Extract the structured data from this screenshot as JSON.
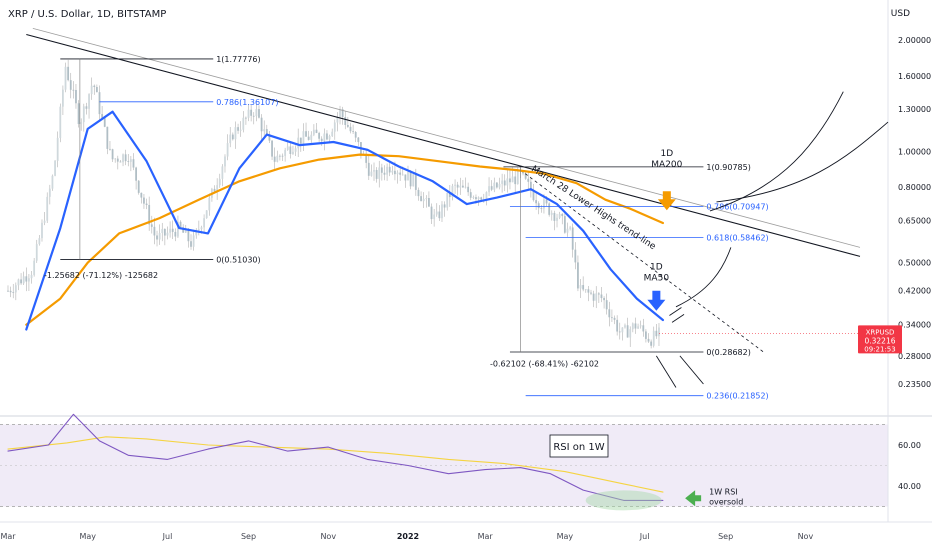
{
  "header": {
    "title": "XRP / U.S. Dollar, 1D, BITSTAMP",
    "currency": "USD"
  },
  "price_badge": {
    "symbol": "XRPUSD",
    "value": "0.32216",
    "countdown": "09:21:53",
    "color": "#f23645"
  },
  "colors": {
    "ma50": "#2962ff",
    "ma200": "#f59b00",
    "fib": "#2962ff",
    "rsi": "#7e57c2",
    "rsi_ma": "#f5d442",
    "oversold_highlight": "#a5d6a7",
    "arrow_ma200": "#f59b00",
    "arrow_ma50": "#2962ff",
    "arrow_rsi": "#4caf50"
  },
  "chart_data": [
    {
      "type": "line",
      "title": "XRP / U.S. Dollar, 1D, BITSTAMP",
      "scale": "log",
      "y_axis_ticks": [
        "2.00000",
        "1.60000",
        "1.30000",
        "1.00000",
        "0.80000",
        "0.65000",
        "0.50000",
        "0.42000",
        "0.34000",
        "0.28000",
        "0.23500"
      ],
      "x_axis_ticks": [
        "Mar",
        "May",
        "Jul",
        "Sep",
        "Nov",
        "2022",
        "Mar",
        "May",
        "Jul",
        "Sep",
        "Nov"
      ],
      "series": [
        {
          "name": "MA50",
          "x": [
            "2021-03-15",
            "2021-04-10",
            "2021-05-01",
            "2021-05-20",
            "2021-06-15",
            "2021-07-10",
            "2021-08-01",
            "2021-08-25",
            "2021-09-15",
            "2021-10-10",
            "2021-11-05",
            "2021-12-01",
            "2021-12-25",
            "2022-01-20",
            "2022-02-15",
            "2022-03-10",
            "2022-04-05",
            "2022-04-25",
            "2022-05-15",
            "2022-06-05",
            "2022-06-25",
            "2022-07-15"
          ],
          "values": [
            0.33,
            0.62,
            1.15,
            1.28,
            0.94,
            0.62,
            0.6,
            0.9,
            1.11,
            1.04,
            1.06,
            1.01,
            0.91,
            0.83,
            0.72,
            0.75,
            0.79,
            0.72,
            0.61,
            0.48,
            0.4,
            0.35
          ]
        },
        {
          "name": "MA200",
          "x": [
            "2021-03-15",
            "2021-04-10",
            "2021-05-01",
            "2021-05-25",
            "2021-06-25",
            "2021-07-25",
            "2021-08-25",
            "2021-09-25",
            "2021-10-25",
            "2021-11-25",
            "2021-12-25",
            "2022-01-25",
            "2022-02-25",
            "2022-03-25",
            "2022-04-15",
            "2022-05-10",
            "2022-06-01",
            "2022-06-20",
            "2022-07-15"
          ],
          "values": [
            0.34,
            0.4,
            0.5,
            0.6,
            0.66,
            0.74,
            0.83,
            0.9,
            0.95,
            0.98,
            0.97,
            0.94,
            0.91,
            0.89,
            0.87,
            0.82,
            0.74,
            0.7,
            0.64
          ]
        },
        {
          "name": "Price",
          "x": [
            "2021-03-01",
            "2021-03-20",
            "2021-04-05",
            "2021-04-14",
            "2021-04-25",
            "2021-05-05",
            "2021-05-19",
            "2021-06-01",
            "2021-06-22",
            "2021-07-10",
            "2021-07-20",
            "2021-08-05",
            "2021-08-20",
            "2021-09-06",
            "2021-09-21",
            "2021-10-10",
            "2021-11-01",
            "2021-11-10",
            "2021-11-25",
            "2021-12-05",
            "2021-12-20",
            "2022-01-05",
            "2022-01-22",
            "2022-02-05",
            "2022-02-25",
            "2022-03-10",
            "2022-03-28",
            "2022-04-10",
            "2022-04-25",
            "2022-05-05",
            "2022-05-12",
            "2022-05-30",
            "2022-06-13",
            "2022-06-25",
            "2022-07-05",
            "2022-07-12"
          ],
          "values": [
            0.42,
            0.48,
            0.88,
            1.7,
            1.2,
            1.55,
            0.95,
            0.98,
            0.58,
            0.62,
            0.56,
            0.78,
            1.12,
            1.3,
            0.95,
            1.08,
            1.12,
            1.28,
            1.02,
            0.85,
            0.92,
            0.83,
            0.65,
            0.8,
            0.76,
            0.8,
            0.86,
            0.74,
            0.67,
            0.6,
            0.42,
            0.4,
            0.32,
            0.34,
            0.31,
            0.32
          ]
        }
      ],
      "fib_levels": [
        {
          "label": "1(1.77776)",
          "price": 1.77776
        },
        {
          "label": "0.786(1.36107)",
          "price": 1.36107
        },
        {
          "label": "0(0.51030)",
          "price": 0.5103
        },
        {
          "label": "1(0.90785)",
          "price": 0.90785
        },
        {
          "label": "0.786(0.70947)",
          "price": 0.70947
        },
        {
          "label": "0.618(0.58462)",
          "price": 0.58462
        },
        {
          "label": "0(0.28682)",
          "price": 0.28682
        },
        {
          "label": "0.236(0.21852)",
          "price": 0.21852
        }
      ],
      "annotations": [
        "-1.25682 (-71.12%) -125682",
        "-0.62102 (-68.41%) -62102",
        "March 28 Lower Highs trend-line",
        "1D MA200",
        "1D MA50"
      ]
    },
    {
      "type": "line",
      "title": "RSI on 1W",
      "y_axis_ticks": [
        "60.00",
        "40.00"
      ],
      "series": [
        {
          "name": "RSI",
          "x": [
            "2021-03-01",
            "2021-04-01",
            "2021-04-20",
            "2021-05-10",
            "2021-06-01",
            "2021-07-01",
            "2021-08-01",
            "2021-09-01",
            "2021-10-01",
            "2021-11-01",
            "2021-12-01",
            "2022-01-01",
            "2022-02-01",
            "2022-03-01",
            "2022-03-28",
            "2022-04-20",
            "2022-05-15",
            "2022-06-15",
            "2022-07-15"
          ],
          "values": [
            57,
            60,
            75,
            62,
            55,
            53,
            58,
            62,
            57,
            59,
            53,
            50,
            46,
            48,
            49,
            46,
            38,
            33,
            33
          ]
        },
        {
          "name": "RSI MA",
          "x": [
            "2021-03-01",
            "2021-04-15",
            "2021-05-15",
            "2021-06-15",
            "2021-08-01",
            "2021-09-15",
            "2021-11-01",
            "2021-12-15",
            "2022-02-01",
            "2022-03-15",
            "2022-05-01",
            "2022-06-15",
            "2022-07-15"
          ],
          "values": [
            58,
            61,
            64,
            63,
            60,
            59,
            58,
            56,
            53,
            51,
            47,
            41,
            37
          ]
        }
      ],
      "annotations": [
        "1W RSI oversold"
      ]
    }
  ]
}
